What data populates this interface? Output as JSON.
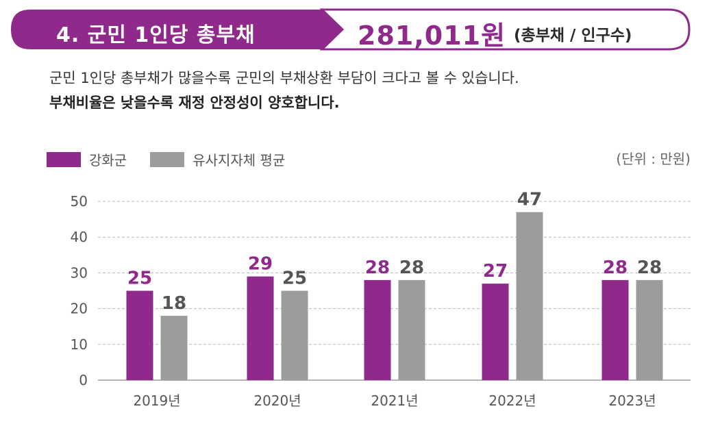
{
  "header": {
    "title": "4. 군민 1인당 총부채",
    "value": "281,011원",
    "formula": "(총부채 / 인구수)"
  },
  "description": {
    "line1": "군민 1인당 총부채가 많을수록 군민의 부채상환 부담이 크다고 볼 수 있습니다.",
    "line2": "부채비율은 낮을수록 재정 안정성이 양호합니다."
  },
  "unit_label": "(단위 : 만원)",
  "colors": {
    "ganghwa": "#8f2a8c",
    "average": "#9c9c9c",
    "grid": "#b8b8b8",
    "axis_text": "#555555"
  },
  "chart_data": {
    "type": "bar",
    "categories": [
      "2019년",
      "2020년",
      "2021년",
      "2022년",
      "2023년"
    ],
    "series": [
      {
        "name": "강화군",
        "values": [
          25,
          29,
          28,
          27,
          28
        ]
      },
      {
        "name": "유사지자체 평균",
        "values": [
          18,
          25,
          28,
          47,
          28
        ]
      }
    ],
    "yticks": [
      0,
      10,
      20,
      30,
      40,
      50
    ],
    "ylim": [
      0,
      50
    ],
    "grid": true,
    "legend_position": "top-left"
  }
}
